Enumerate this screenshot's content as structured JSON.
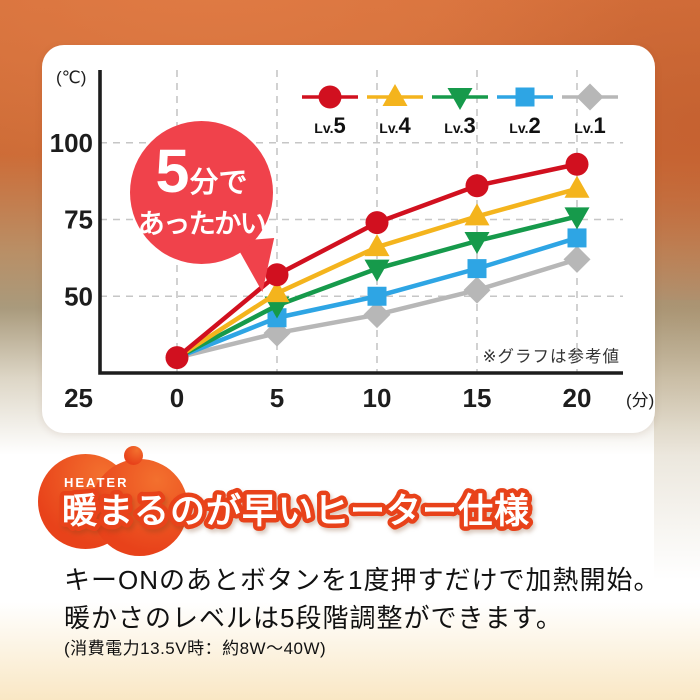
{
  "chart_data": {
    "type": "line",
    "x": [
      0,
      5,
      10,
      15,
      20
    ],
    "xticks": [
      0,
      5,
      10,
      15,
      20
    ],
    "yticks": [
      100,
      75,
      50,
      25
    ],
    "ylim": [
      25,
      115
    ],
    "x_unit_label": "(分)",
    "y_unit_label": "(℃)",
    "grid": "dashed",
    "legend_position": "top-right",
    "note": "※グラフは参考値",
    "series": [
      {
        "name": "Lv.5",
        "color": "#d1101f",
        "marker": "circle",
        "values": [
          30,
          57,
          74,
          86,
          93
        ]
      },
      {
        "name": "Lv.4",
        "color": "#f4b41d",
        "marker": "triangle-up",
        "values": [
          30,
          51,
          66,
          76,
          85
        ]
      },
      {
        "name": "Lv.3",
        "color": "#169a4b",
        "marker": "triangle-down",
        "values": [
          30,
          47,
          59,
          68,
          76
        ]
      },
      {
        "name": "Lv.2",
        "color": "#2ea5e4",
        "marker": "square",
        "values": [
          30,
          43,
          50,
          59,
          69
        ]
      },
      {
        "name": "Lv.1",
        "color": "#b7b7b7",
        "marker": "diamond",
        "values": [
          30,
          38,
          44,
          52,
          62
        ]
      }
    ]
  },
  "bubble": {
    "big": "5",
    "small": "分で",
    "line2": "あったかい",
    "color": "#f0424b"
  },
  "feature": {
    "eyebrow": "HEATER",
    "heading": "暖まるのが早いヒーター仕様",
    "body_line1": "キーONのあとボタンを1度押すだけで加熱開始。",
    "body_line2": "暖かさのレベルは5段階調整ができます。",
    "power_note": "(消費電力13.5V時：約8W〜40W)",
    "blob_color": "#e8421a"
  }
}
